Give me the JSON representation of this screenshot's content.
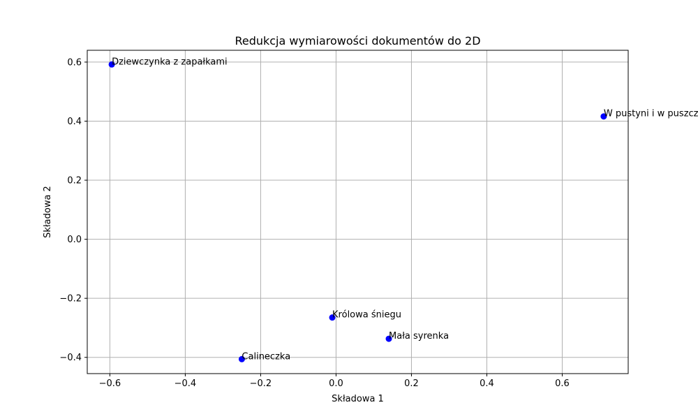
{
  "chart_data": {
    "type": "scatter",
    "title": "Redukcja wymiarowości dokumentów do 2D",
    "xlabel": "Składowa 1",
    "ylabel": "Składowa 2",
    "xlim": [
      -0.66,
      0.775
    ],
    "ylim": [
      -0.455,
      0.64
    ],
    "x_ticks": [
      -0.6,
      -0.4,
      -0.2,
      0.0,
      0.2,
      0.4,
      0.6
    ],
    "x_tick_labels": [
      "−0.6",
      "−0.4",
      "−0.2",
      "0.0",
      "0.2",
      "0.4",
      "0.6"
    ],
    "y_ticks": [
      -0.4,
      -0.2,
      0.0,
      0.2,
      0.4,
      0.6
    ],
    "y_tick_labels": [
      "−0.4",
      "−0.2",
      "0.0",
      "0.2",
      "0.4",
      "0.6"
    ],
    "grid": true,
    "point_color": "#0000ff",
    "axis_color": "#000000",
    "grid_color": "#b0b0b0",
    "points": [
      {
        "label": "Dziewczynka z zapałkami",
        "x": -0.595,
        "y": 0.592
      },
      {
        "label": "W pustyni i w puszczy",
        "x": 0.71,
        "y": 0.416
      },
      {
        "label": "Królowa śniegu",
        "x": -0.01,
        "y": -0.265
      },
      {
        "label": "Mała syrenka",
        "x": 0.14,
        "y": -0.337
      },
      {
        "label": "Calineczka",
        "x": -0.25,
        "y": -0.406
      }
    ]
  }
}
